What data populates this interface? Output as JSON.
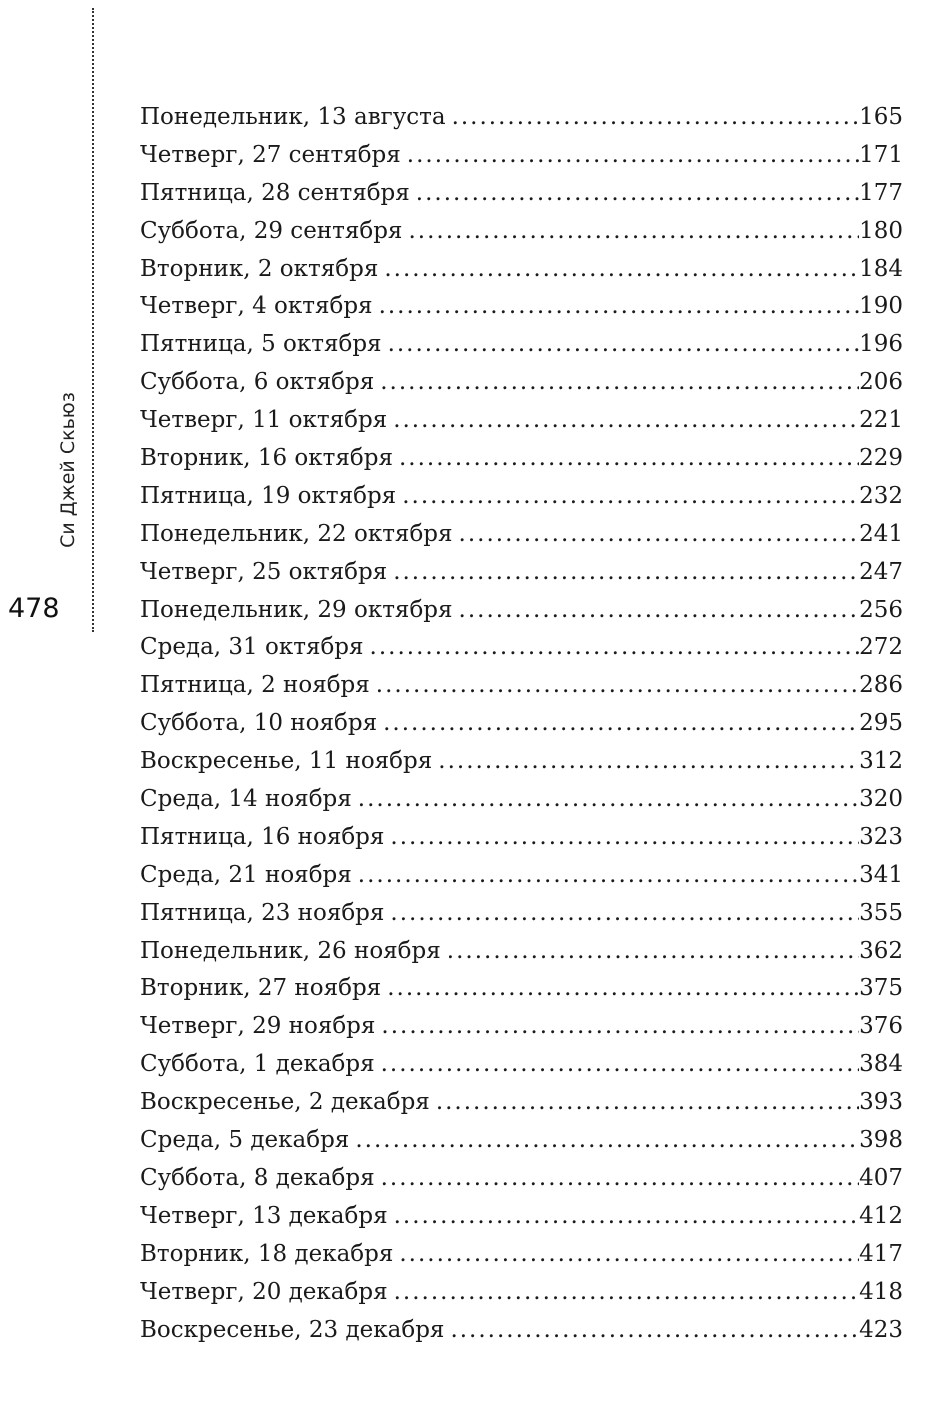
{
  "margin": {
    "author": "Си Джей Скьюз",
    "page_number": "478"
  },
  "toc": [
    {
      "label": "Понедельник, 13 августа",
      "page": "165"
    },
    {
      "label": "Четверг, 27 сентября",
      "page": "171"
    },
    {
      "label": "Пятница, 28 сентября",
      "page": "177"
    },
    {
      "label": "Суббота, 29 сентября",
      "page": "180"
    },
    {
      "label": "Вторник, 2 октября",
      "page": "184"
    },
    {
      "label": "Четверг, 4 октября",
      "page": "190"
    },
    {
      "label": "Пятница, 5 октября",
      "page": "196"
    },
    {
      "label": "Суббота, 6 октября",
      "page": "206"
    },
    {
      "label": "Четверг, 11 октября",
      "page": "221"
    },
    {
      "label": "Вторник, 16 октября",
      "page": "229"
    },
    {
      "label": "Пятница, 19 октября",
      "page": "232"
    },
    {
      "label": "Понедельник, 22 октября",
      "page": "241"
    },
    {
      "label": "Четверг, 25 октября",
      "page": "247"
    },
    {
      "label": "Понедельник, 29 октября",
      "page": "256"
    },
    {
      "label": "Среда, 31 октября",
      "page": "272"
    },
    {
      "label": "Пятница, 2 ноября",
      "page": "286"
    },
    {
      "label": "Суббота, 10 ноября",
      "page": "295"
    },
    {
      "label": "Воскресенье, 11 ноября",
      "page": "312"
    },
    {
      "label": "Среда, 14 ноября",
      "page": "320"
    },
    {
      "label": "Пятница, 16 ноября",
      "page": "323"
    },
    {
      "label": "Среда, 21 ноября",
      "page": "341"
    },
    {
      "label": "Пятница, 23 ноября",
      "page": "355"
    },
    {
      "label": "Понедельник, 26 ноября",
      "page": "362"
    },
    {
      "label": "Вторник, 27 ноября",
      "page": "375"
    },
    {
      "label": "Четверг, 29 ноября",
      "page": "376"
    },
    {
      "label": "Суббота, 1 декабря",
      "page": "384"
    },
    {
      "label": "Воскресенье, 2 декабря",
      "page": "393"
    },
    {
      "label": "Среда, 5 декабря",
      "page": "398"
    },
    {
      "label": "Суббота, 8 декабря",
      "page": "407"
    },
    {
      "label": "Четверг, 13 декабря",
      "page": "412"
    },
    {
      "label": "Вторник, 18 декабря",
      "page": "417"
    },
    {
      "label": "Четверг, 20 декабря",
      "page": "418"
    },
    {
      "label": "Воскресенье, 23 декабря",
      "page": "423"
    }
  ]
}
